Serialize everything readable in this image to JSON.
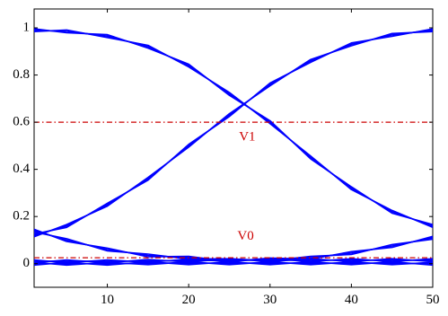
{
  "chart_data": {
    "type": "line",
    "title": "",
    "xlabel": "",
    "ylabel": "",
    "xlim": [
      1,
      50
    ],
    "ylim": [
      -0.1,
      1.08
    ],
    "x_ticks": [
      10,
      20,
      30,
      40,
      50
    ],
    "y_ticks": [
      0,
      0.2,
      0.4,
      0.6,
      0.8,
      1
    ],
    "x_tick_labels": [
      "10",
      "20",
      "30",
      "40",
      "50"
    ],
    "y_tick_labels": [
      "0",
      "0.2",
      "0.4",
      "0.6",
      "0.8",
      "1"
    ],
    "grid": false,
    "series_color": "#0000ff",
    "reference_color": "#cc0000",
    "x": [
      1,
      5,
      10,
      15,
      20,
      25,
      30,
      35,
      40,
      45,
      50
    ],
    "series": [
      {
        "values": [
          0.99,
          0.985,
          0.965,
          0.92,
          0.84,
          0.72,
          0.6,
          0.45,
          0.32,
          0.22,
          0.16
        ]
      },
      {
        "values": [
          0.12,
          0.16,
          0.25,
          0.36,
          0.5,
          0.63,
          0.76,
          0.86,
          0.93,
          0.97,
          0.99
        ]
      },
      {
        "values": [
          0.14,
          0.1,
          0.06,
          0.035,
          0.025,
          0.015,
          0.015,
          0.015,
          0.015,
          0.015,
          0.015
        ]
      },
      {
        "values": [
          0.01,
          0.01,
          0.01,
          0.012,
          0.013,
          0.015,
          0.018,
          0.025,
          0.045,
          0.075,
          0.11
        ]
      },
      {
        "values": [
          0.0,
          0.0,
          0.0,
          0.002,
          0.002,
          0.002,
          0.002,
          0.002,
          0.002,
          0.002,
          0.0
        ]
      }
    ],
    "reference_lines": [
      {
        "label": "V1",
        "y": 0.6,
        "label_x": 27.2,
        "label_y": 0.535
      },
      {
        "label": "V0",
        "y": 0.025,
        "label_x": 27,
        "label_y": 0.115
      }
    ]
  }
}
